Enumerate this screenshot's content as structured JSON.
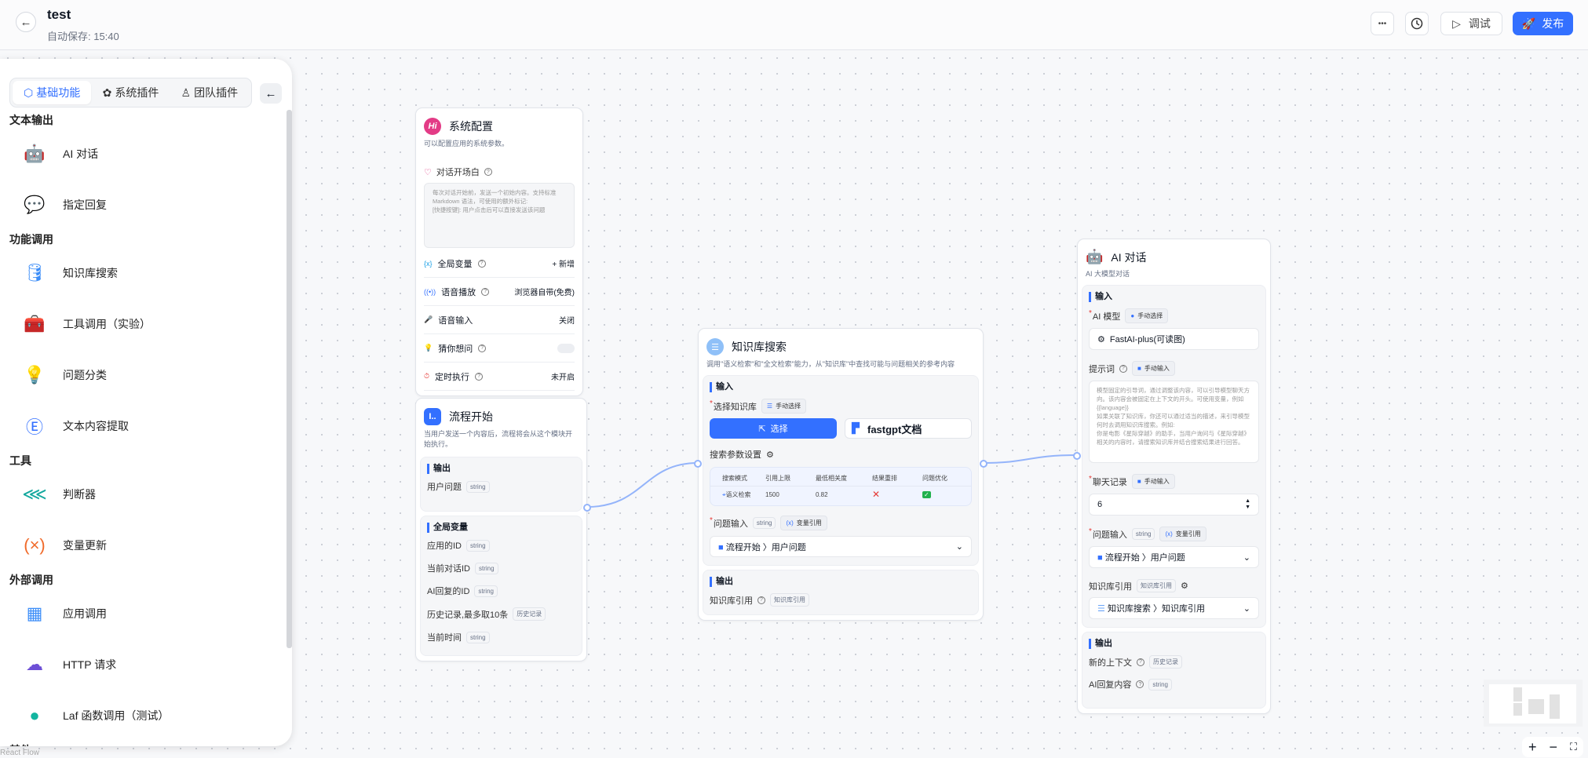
{
  "header": {
    "title": "test",
    "autosave": "自动保存: 15:40",
    "more_label": "•••",
    "debug_label": "调试",
    "publish_label": "发布"
  },
  "sidebar": {
    "tabs": [
      {
        "label": "基础功能",
        "active": true
      },
      {
        "label": "系统插件"
      },
      {
        "label": "团队插件"
      }
    ],
    "sections": [
      {
        "title": "文本输出",
        "items": [
          {
            "label": "AI 对话",
            "icon": "robot-icon"
          },
          {
            "label": "指定回复",
            "icon": "message-icon"
          }
        ]
      },
      {
        "title": "功能调用",
        "items": [
          {
            "label": "知识库搜索",
            "icon": "database-icon"
          },
          {
            "label": "工具调用（实验）",
            "icon": "toolbox-icon"
          },
          {
            "label": "问题分类",
            "icon": "lightbulb-icon"
          },
          {
            "label": "文本内容提取",
            "icon": "extract-icon"
          }
        ]
      },
      {
        "title": "工具",
        "items": [
          {
            "label": "判断器",
            "icon": "branch-icon"
          },
          {
            "label": "变量更新",
            "icon": "variable-icon"
          }
        ]
      },
      {
        "title": "外部调用",
        "items": [
          {
            "label": "应用调用",
            "icon": "app-grid-icon"
          },
          {
            "label": "HTTP 请求",
            "icon": "http-icon"
          },
          {
            "label": "Laf 函数调用（测试）",
            "icon": "laf-icon"
          }
        ]
      },
      {
        "title": "其他",
        "items": []
      }
    ]
  },
  "system_config": {
    "icon_text": "Hi",
    "title": "系统配置",
    "desc": "可以配置应用的系统参数。",
    "welcome_label": "对话开场白",
    "welcome_placeholder": "每次对话开始前，发送一个初始内容。支持标准 Markdown 语法，可使用的额外标记:\n[快捷按键]: 用户点击后可以直接发送该问题",
    "rows": [
      {
        "label": "全局变量",
        "value": "+ 新增",
        "help": true
      },
      {
        "label": "语音播放",
        "value": "浏览器自带(免费)",
        "help": true
      },
      {
        "label": "语音输入",
        "value": "关闭",
        "help": false
      },
      {
        "label": "猜你想问",
        "value": "",
        "help": true,
        "toggle": false
      },
      {
        "label": "定时执行",
        "value": "未开启",
        "help": true
      }
    ]
  },
  "start_node": {
    "icon_text": "I..",
    "title": "流程开始",
    "desc": "当用户发送一个内容后，流程将会从这个模块开始执行。",
    "output_title": "输出",
    "outputs": [
      {
        "label": "用户问题",
        "type": "string"
      }
    ],
    "globals_title": "全局变量",
    "globals": [
      {
        "label": "应用的ID",
        "type": "string"
      },
      {
        "label": "当前对话ID",
        "type": "string"
      },
      {
        "label": "AI回复的ID",
        "type": "string"
      },
      {
        "label": "历史记录,最多取10条",
        "type": "历史记录"
      },
      {
        "label": "当前时间",
        "type": "string"
      }
    ]
  },
  "kb_node": {
    "title": "知识库搜索",
    "desc": "调用\"语义检索\"和\"全文检索\"能力，从\"知识库\"中查找可能与问题相关的参考内容",
    "input_title": "输入",
    "select_kb_label": "选择知识库",
    "select_kb_mode": "手动选择",
    "select_button": "选择",
    "selected_kb": "fastgpt文档",
    "params_label": "搜索参数设置",
    "table": {
      "headers": [
        "搜索模式",
        "引用上限",
        "最低相关度",
        "结果重排",
        "问题优化"
      ],
      "row": {
        "mode": "语义检索",
        "limit": "1500",
        "similarity": "0.82",
        "rerank": false,
        "optimize": true
      }
    },
    "question_label": "问题输入",
    "question_type": "string",
    "question_mode": "变量引用",
    "question_value": [
      "流程开始",
      "用户问题"
    ],
    "output_title": "输出",
    "output_label": "知识库引用",
    "output_type": "知识库引用"
  },
  "ai_node": {
    "title": "AI 对话",
    "desc": "AI 大模型对话",
    "input_title": "输入",
    "model_label": "AI 模型",
    "model_mode": "手动选择",
    "model_value": "FastAI-plus(可读图)",
    "prompt_label": "提示词",
    "prompt_mode": "手动输入",
    "prompt_placeholder": "模型固定的引导词，通过调整该内容，可以引导模型聊天方向。该内容会被固定在上下文的开头。可使用变量，例如 {{language}}\n如果关联了知识库，你还可以通过适当的描述，来引导模型何时去调用知识库搜索。例如:\n你是电影《星际穿越》的助手，当用户询问与《星际穿越》相关的内容时，请搜索知识库并结合搜索结果进行回答。",
    "history_label": "聊天记录",
    "history_mode": "手动输入",
    "history_value": "6",
    "question_label": "问题输入",
    "question_type": "string",
    "question_mode": "变量引用",
    "question_value": [
      "流程开始",
      "用户问题"
    ],
    "quote_label": "知识库引用",
    "quote_type": "知识库引用",
    "quote_value": [
      "知识库搜索",
      "知识库引用"
    ],
    "output_title": "输出",
    "outputs": [
      {
        "label": "新的上下文",
        "type": "历史记录"
      },
      {
        "label": "AI回复内容",
        "type": "string"
      }
    ]
  },
  "canvas": {
    "attribution": "React Flow",
    "accent": "#3370ff"
  }
}
